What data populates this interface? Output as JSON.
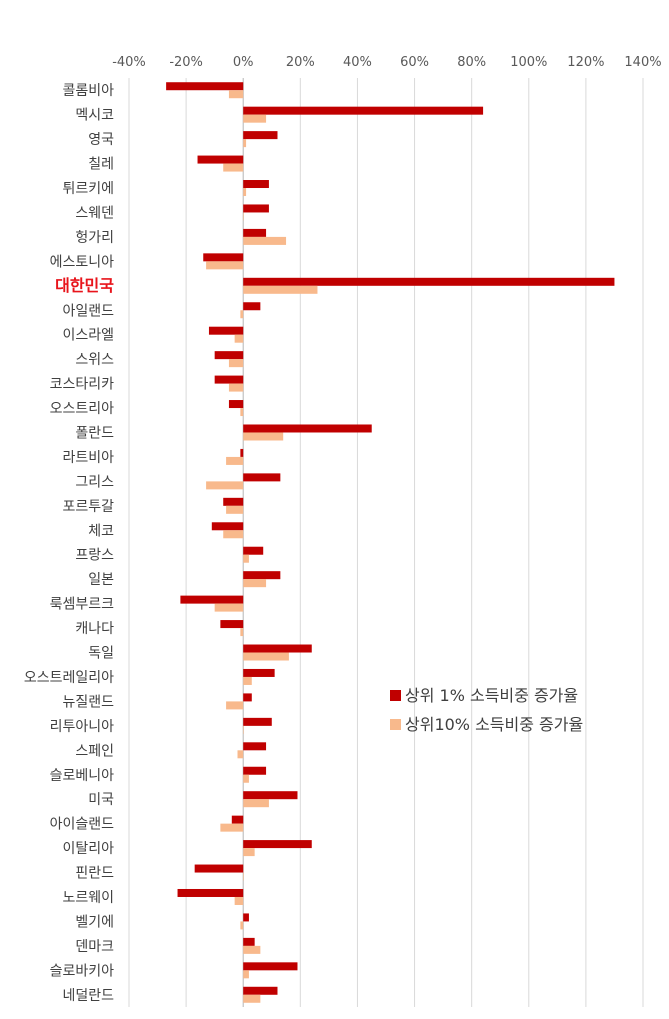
{
  "chart_data": {
    "type": "bar",
    "orientation": "horizontal",
    "xlim": [
      -40,
      140
    ],
    "xticks": [
      "-40%",
      "-20%",
      "0%",
      "20%",
      "40%",
      "60%",
      "80%",
      "100%",
      "120%",
      "140%"
    ],
    "grid": true,
    "legend_position": "right",
    "highlight_category": "대한민국",
    "categories": [
      "콜롬비아",
      "멕시코",
      "영국",
      "칠레",
      "튀르키에",
      "스웨덴",
      "헝가리",
      "에스토니아",
      "대한민국",
      "아일랜드",
      "이스라엘",
      "스위스",
      "코스타리카",
      "오스트리아",
      "폴란드",
      "라트비아",
      "그리스",
      "포르투갈",
      "체코",
      "프랑스",
      "일본",
      "룩셈부르크",
      "캐나다",
      "독일",
      "오스트레일리아",
      "뉴질랜드",
      "리투아니아",
      "스페인",
      "슬로베니아",
      "미국",
      "아이슬랜드",
      "이탈리아",
      "핀란드",
      "노르웨이",
      "벨기에",
      "덴마크",
      "슬로바키아",
      "네덜란드"
    ],
    "series": [
      {
        "name": "상위  1% 소득비중 증가율",
        "color": "#c00000",
        "values": [
          -27,
          84,
          12,
          -16,
          9,
          9,
          8,
          -14,
          130,
          6,
          -12,
          -10,
          -10,
          -5,
          45,
          -1,
          13,
          -7,
          -11,
          7,
          13,
          -22,
          -8,
          24,
          11,
          3,
          10,
          8,
          8,
          19,
          -4,
          24,
          -17,
          -23,
          2,
          4,
          19,
          12
        ]
      },
      {
        "name": "상위10% 소득비중 증가율",
        "color": "#f8b98c",
        "values": [
          -5,
          8,
          1,
          -7,
          1,
          0,
          15,
          -13,
          26,
          -1,
          -3,
          -5,
          -5,
          -1,
          14,
          -6,
          -13,
          -6,
          -7,
          2,
          8,
          -10,
          -1,
          16,
          3,
          -6,
          0,
          -2,
          2,
          9,
          -8,
          4,
          0,
          -3,
          -1,
          6,
          2,
          6
        ]
      }
    ]
  }
}
